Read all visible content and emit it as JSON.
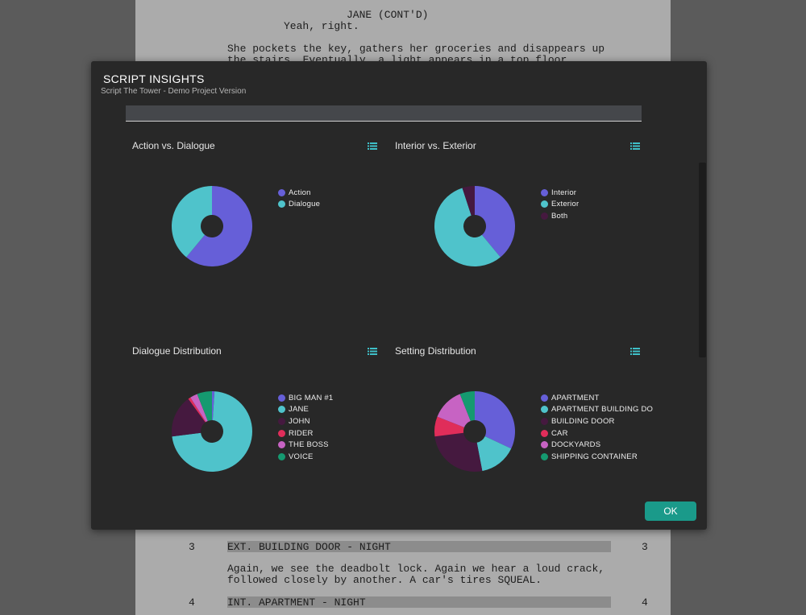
{
  "script_page": {
    "lines_top": [
      {
        "text": "JANE (CONT'D)",
        "indent": "character"
      },
      {
        "text": "Yeah, right.",
        "indent": "dialogue"
      },
      {
        "text": "She pockets the key, gathers her groceries and disappears up",
        "indent": "action"
      },
      {
        "text": "the stairs. Eventually, a light appears in a top floor",
        "indent": "action"
      }
    ],
    "scenes": [
      {
        "number": "3",
        "heading": "EXT. BUILDING DOOR - NIGHT",
        "action": [
          "Again, we see the deadbolt lock. Again we hear a loud crack,",
          "followed closely by another. A car's tires SQUEAL."
        ]
      },
      {
        "number": "4",
        "heading": "INT. APARTMENT - NIGHT",
        "action": []
      }
    ]
  },
  "modal": {
    "title": "SCRIPT INSIGHTS",
    "subtitle": "Script The Tower - Demo Project Version",
    "ok_label": "OK"
  },
  "icons": {
    "list": "list-icon"
  },
  "colors": {
    "apartment": "#665fd8",
    "apartment_building": "#4fc3cb",
    "building_door": "#45193f",
    "car": "#e02d5a",
    "dockyards": "#c763c3",
    "shipping_container": "#159a70",
    "modal_bg": "#282828",
    "ok_button": "#1a9a8a"
  },
  "chart_data": [
    {
      "type": "pie",
      "title": "Action vs. Dialogue",
      "donut": true,
      "legend": "right",
      "categories": [
        "Action",
        "Dialogue"
      ],
      "values": [
        61,
        39
      ],
      "colors": [
        "#665fd8",
        "#4fc3cb"
      ]
    },
    {
      "type": "pie",
      "title": "Interior vs. Exterior",
      "donut": true,
      "legend": "right",
      "categories": [
        "Interior",
        "Exterior",
        "Both"
      ],
      "values": [
        39,
        56,
        5
      ],
      "colors": [
        "#665fd8",
        "#4fc3cb",
        "#45193f"
      ]
    },
    {
      "type": "pie",
      "title": "Dialogue Distribution",
      "donut": true,
      "legend": "right",
      "categories": [
        "BIG MAN #1",
        "JANE",
        "JOHN",
        "RIDER",
        "THE BOSS",
        "VOICE"
      ],
      "values": [
        1,
        72,
        17,
        1,
        3,
        6
      ],
      "colors": [
        "#665fd8",
        "#4fc3cb",
        "#45193f",
        "#e02d5a",
        "#c763c3",
        "#159a70"
      ]
    },
    {
      "type": "pie",
      "title": "Setting Distribution",
      "donut": true,
      "legend": "right",
      "categories": [
        "APARTMENT",
        "APARTMENT BUILDING DO",
        "BUILDING DOOR",
        "CAR",
        "DOCKYARDS",
        "SHIPPING CONTAINER"
      ],
      "values": [
        32,
        15,
        26,
        8,
        13,
        6
      ],
      "colors": [
        "#665fd8",
        "#4fc3cb",
        "#45193f",
        "#e02d5a",
        "#c763c3",
        "#159a70"
      ]
    }
  ]
}
